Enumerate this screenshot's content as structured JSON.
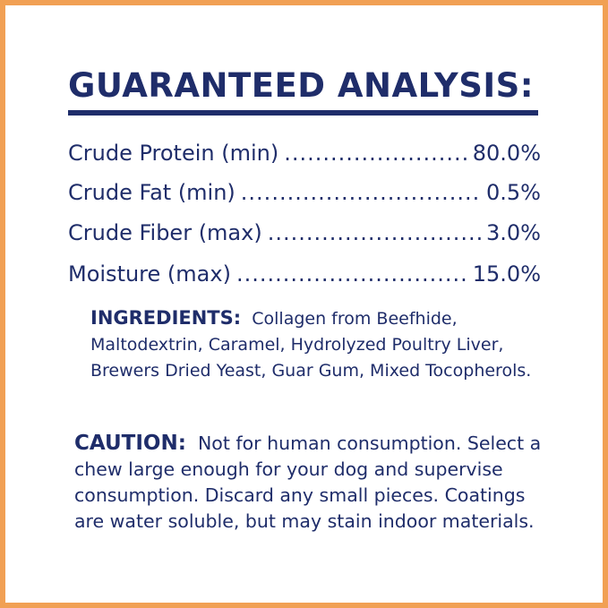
{
  "title": "GUARANTEED ANALYSIS:",
  "analysis": [
    {
      "label": "Crude Protein (min)",
      "value": "80.0%"
    },
    {
      "label": "Crude Fat (min)",
      "value": "0.5%"
    },
    {
      "label": "Crude Fiber (max)",
      "value": "3.0%"
    },
    {
      "label": "Moisture (max)",
      "value": "15.0%"
    }
  ],
  "ingredients": {
    "heading": "INGREDIENTS:",
    "text": "Collagen from Beefhide, Maltodextrin, Caramel, Hydrolyzed Poultry Liver, Brewers Dried Yeast, Guar Gum, Mixed Tocopherols."
  },
  "caution": {
    "heading": "CAUTION:",
    "text": "Not for human consumption. Select a chew large enough for your dog and supervise consumption. Discard any small pieces. Coatings are water soluble, but may stain indoor materials."
  },
  "colors": {
    "text": "#1f2d6a",
    "border": "#f1a054"
  }
}
